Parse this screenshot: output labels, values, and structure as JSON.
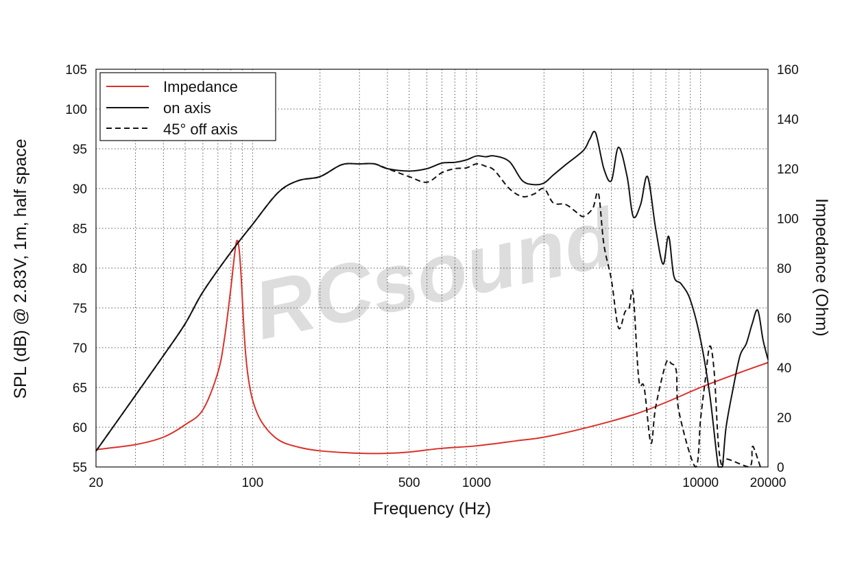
{
  "chart_data": {
    "type": "line",
    "xlabel": "Frequency (Hz)",
    "ylabel": "SPL (dB) @ 2.83V, 1m, half space",
    "y2label": "Impedance (Ohm)",
    "xscale": "log",
    "xlim": [
      20,
      20000
    ],
    "ylim": [
      55,
      105
    ],
    "y2lim": [
      0,
      160
    ],
    "xticks": [
      20,
      100,
      500,
      1000,
      10000,
      20000
    ],
    "xtick_labels": [
      "20",
      "100",
      "500",
      "1000",
      "10000",
      "20000"
    ],
    "yticks": [
      "55",
      "60",
      "65",
      "70",
      "75",
      "80",
      "85",
      "90",
      "95",
      "100",
      "105"
    ],
    "y2ticks": [
      "0",
      "20",
      "40",
      "60",
      "80",
      "100",
      "120",
      "140",
      "160"
    ],
    "grid": true,
    "legend_position": "top-left",
    "watermark": "RCsound",
    "series": [
      {
        "name": "Impedance",
        "axis": "right",
        "color": "#d9302a",
        "style": "solid",
        "x": [
          20,
          30,
          40,
          50,
          60,
          70,
          75,
          80,
          83,
          85,
          87,
          89,
          92,
          95,
          100,
          110,
          130,
          160,
          200,
          300,
          400,
          500,
          700,
          1000,
          1500,
          2000,
          3000,
          5000,
          7000,
          10000,
          15000,
          20000
        ],
        "y": [
          7,
          9,
          12,
          17,
          23,
          38,
          52,
          72,
          85,
          91,
          88,
          76,
          52,
          38,
          27,
          18,
          11,
          8,
          6.5,
          5.5,
          5.5,
          6,
          7.5,
          8.5,
          10.5,
          12,
          15.5,
          21,
          26,
          32,
          38,
          42
        ]
      },
      {
        "name": "on axis",
        "axis": "left",
        "color": "#111111",
        "style": "solid",
        "x": [
          20,
          30,
          40,
          50,
          60,
          80,
          100,
          130,
          160,
          200,
          250,
          300,
          350,
          400,
          500,
          600,
          700,
          800,
          900,
          1000,
          1100,
          1200,
          1400,
          1600,
          1800,
          2000,
          2200,
          2500,
          3000,
          3200,
          3400,
          3700,
          4000,
          4300,
          4700,
          5000,
          5400,
          5800,
          6300,
          6800,
          7200,
          7600,
          8200,
          9000,
          10000,
          11000,
          12000,
          12500,
          13000,
          14000,
          15000,
          16000,
          17000,
          18000,
          19000,
          20000
        ],
        "y": [
          57,
          64,
          69,
          73,
          77,
          82,
          85.5,
          89.5,
          91,
          91.5,
          93,
          93.1,
          93.1,
          92.5,
          92.2,
          92.5,
          93.2,
          93.3,
          93.6,
          94.1,
          94,
          94.1,
          93.4,
          91,
          90.5,
          90.7,
          91.7,
          93,
          94.8,
          96.2,
          97,
          92.5,
          91,
          95.2,
          91.5,
          86.5,
          88,
          91.5,
          85,
          80.5,
          84,
          79,
          78,
          76,
          71,
          64,
          55,
          54,
          60,
          65,
          69,
          70.5,
          73,
          74.7,
          71,
          68.5
        ]
      },
      {
        "name": "45° off axis",
        "axis": "left",
        "color": "#111111",
        "style": "dashed",
        "x": [
          20,
          30,
          40,
          50,
          60,
          80,
          100,
          130,
          160,
          200,
          250,
          300,
          350,
          400,
          500,
          600,
          700,
          800,
          900,
          1000,
          1100,
          1200,
          1400,
          1600,
          1800,
          2000,
          2200,
          2500,
          2800,
          3000,
          3300,
          3500,
          3700,
          4000,
          4300,
          4600,
          4800,
          5000,
          5300,
          5600,
          6000,
          6300,
          7000,
          7400,
          7800,
          8000,
          9500,
          10000,
          10500,
          11000,
          11500,
          12000,
          12500,
          13000,
          16500,
          17000,
          17500,
          18000,
          18500
        ],
        "y": [
          57,
          64,
          69,
          73,
          77,
          82,
          85.5,
          89.5,
          91,
          91.5,
          93,
          93.1,
          93.1,
          92.5,
          91.5,
          90.8,
          92,
          92.5,
          92.6,
          93.1,
          92.8,
          92.3,
          90,
          89,
          89.3,
          90,
          88.2,
          88,
          87,
          86.5,
          87.5,
          89.4,
          83,
          78.5,
          72.5,
          74.5,
          75,
          76.8,
          66,
          65,
          58,
          62.5,
          68,
          68,
          67,
          62,
          55,
          61,
          66,
          70.2,
          67,
          58,
          55,
          56,
          55,
          57.5,
          57,
          56,
          55
        ]
      }
    ]
  }
}
